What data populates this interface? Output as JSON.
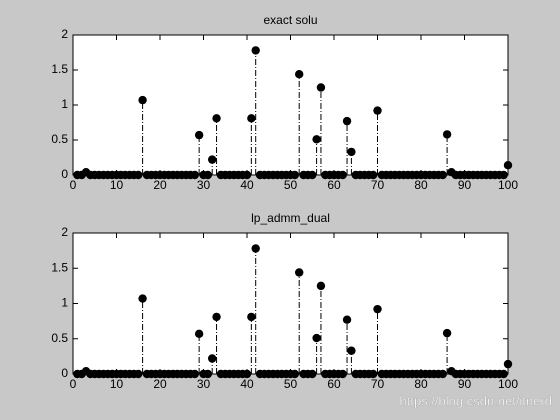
{
  "chart_data": [
    {
      "type": "stem",
      "title": "exact solu",
      "x": [
        1,
        2,
        3,
        4,
        5,
        6,
        7,
        8,
        9,
        10,
        11,
        12,
        13,
        14,
        15,
        16,
        17,
        18,
        19,
        20,
        21,
        22,
        23,
        24,
        25,
        26,
        27,
        28,
        29,
        30,
        31,
        32,
        33,
        34,
        35,
        36,
        37,
        38,
        39,
        40,
        41,
        42,
        43,
        44,
        45,
        46,
        47,
        48,
        49,
        50,
        51,
        52,
        53,
        54,
        55,
        56,
        57,
        58,
        59,
        60,
        61,
        62,
        63,
        64,
        65,
        66,
        67,
        68,
        69,
        70,
        71,
        72,
        73,
        74,
        75,
        76,
        77,
        78,
        79,
        80,
        81,
        82,
        83,
        84,
        85,
        86,
        87,
        88,
        89,
        90,
        91,
        92,
        93,
        94,
        95,
        96,
        97,
        98,
        99,
        100
      ],
      "values": [
        0,
        0,
        0.04,
        0,
        0,
        0,
        0,
        0,
        0,
        0,
        0,
        0,
        0,
        0,
        0,
        1.07,
        0,
        0,
        0,
        0,
        0,
        0,
        0,
        0,
        0,
        0,
        0,
        0,
        0.57,
        0,
        0,
        0.22,
        0.81,
        0,
        0,
        0,
        0,
        0,
        0,
        0,
        0.81,
        1.78,
        0,
        0,
        0,
        0,
        0,
        0,
        0,
        0,
        0,
        1.44,
        0,
        0,
        0,
        0.51,
        1.25,
        0,
        0,
        0,
        0,
        0,
        0.77,
        0.33,
        0,
        0,
        0,
        0,
        0,
        0.92,
        0,
        0,
        0,
        0,
        0,
        0,
        0,
        0,
        0,
        0,
        0,
        0,
        0,
        0,
        0,
        0.58,
        0.04,
        0,
        0,
        0,
        0,
        0,
        0,
        0,
        0,
        0,
        0,
        0,
        0,
        0.14
      ],
      "color": "#000000",
      "xlim": [
        0,
        100
      ],
      "xticks": [
        0,
        10,
        20,
        30,
        40,
        50,
        60,
        70,
        80,
        90,
        100
      ],
      "ylim": [
        0,
        2
      ],
      "yticks": [
        0,
        0.5,
        1,
        1.5,
        2
      ]
    },
    {
      "type": "stem",
      "title": "lp_admm_dual",
      "x": [
        1,
        2,
        3,
        4,
        5,
        6,
        7,
        8,
        9,
        10,
        11,
        12,
        13,
        14,
        15,
        16,
        17,
        18,
        19,
        20,
        21,
        22,
        23,
        24,
        25,
        26,
        27,
        28,
        29,
        30,
        31,
        32,
        33,
        34,
        35,
        36,
        37,
        38,
        39,
        40,
        41,
        42,
        43,
        44,
        45,
        46,
        47,
        48,
        49,
        50,
        51,
        52,
        53,
        54,
        55,
        56,
        57,
        58,
        59,
        60,
        61,
        62,
        63,
        64,
        65,
        66,
        67,
        68,
        69,
        70,
        71,
        72,
        73,
        74,
        75,
        76,
        77,
        78,
        79,
        80,
        81,
        82,
        83,
        84,
        85,
        86,
        87,
        88,
        89,
        90,
        91,
        92,
        93,
        94,
        95,
        96,
        97,
        98,
        99,
        100
      ],
      "values": [
        0,
        0,
        0.04,
        0,
        0,
        0,
        0,
        0,
        0,
        0,
        0,
        0,
        0,
        0,
        0,
        1.07,
        0,
        0,
        0,
        0,
        0,
        0,
        0,
        0,
        0,
        0,
        0,
        0,
        0.57,
        0,
        0,
        0.22,
        0.81,
        0,
        0,
        0,
        0,
        0,
        0,
        0,
        0.81,
        1.78,
        0,
        0,
        0,
        0,
        0,
        0,
        0,
        0,
        0,
        1.44,
        0,
        0,
        0,
        0.51,
        1.25,
        0,
        0,
        0,
        0,
        0,
        0.77,
        0.33,
        0,
        0,
        0,
        0,
        0,
        0.92,
        0,
        0,
        0,
        0,
        0,
        0,
        0,
        0,
        0,
        0,
        0,
        0,
        0,
        0,
        0,
        0.58,
        0.04,
        0,
        0,
        0,
        0,
        0,
        0,
        0,
        0,
        0,
        0,
        0,
        0,
        0.14
      ],
      "color": "#000000",
      "xlim": [
        0,
        100
      ],
      "xticks": [
        0,
        10,
        20,
        30,
        40,
        50,
        60,
        70,
        80,
        90,
        100
      ],
      "ylim": [
        0,
        2
      ],
      "yticks": [
        0,
        0.5,
        1,
        1.5,
        2
      ]
    }
  ],
  "watermark": "https://blog.csdn.net/itnerd"
}
